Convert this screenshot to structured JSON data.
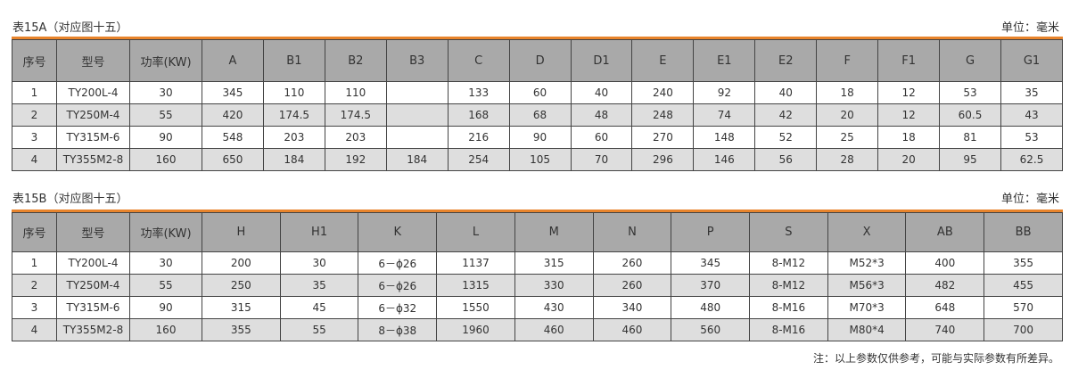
{
  "table_a": {
    "title": "表15A（对应图十五）",
    "unit": "单位：毫米",
    "headers": [
      "序号",
      "型号",
      "功率(KW)",
      "A",
      "B1",
      "B2",
      "B3",
      "C",
      "D",
      "D1",
      "E",
      "E1",
      "E2",
      "F",
      "F1",
      "G",
      "G1"
    ],
    "rows": [
      [
        "1",
        "TY200L-4",
        "30",
        "345",
        "110",
        "110",
        "",
        "133",
        "60",
        "40",
        "240",
        "92",
        "40",
        "18",
        "12",
        "53",
        "35"
      ],
      [
        "2",
        "TY250M-4",
        "55",
        "420",
        "174.5",
        "174.5",
        "",
        "168",
        "68",
        "48",
        "248",
        "74",
        "42",
        "20",
        "12",
        "60.5",
        "43"
      ],
      [
        "3",
        "TY315M-6",
        "90",
        "548",
        "203",
        "203",
        "",
        "216",
        "90",
        "60",
        "270",
        "148",
        "52",
        "25",
        "18",
        "81",
        "53"
      ],
      [
        "4",
        "TY355M2-8",
        "160",
        "650",
        "184",
        "192",
        "184",
        "254",
        "105",
        "70",
        "296",
        "146",
        "56",
        "28",
        "20",
        "95",
        "62.5"
      ]
    ]
  },
  "table_b": {
    "title": "表15B（对应图十五）",
    "unit": "单位：毫米",
    "headers": [
      "序号",
      "型号",
      "功率(KW)",
      "H",
      "H1",
      "K",
      "L",
      "M",
      "N",
      "P",
      "S",
      "X",
      "AB",
      "BB"
    ],
    "rows": [
      [
        "1",
        "TY200L-4",
        "30",
        "200",
        "30",
        "6－ϕ26",
        "1137",
        "315",
        "260",
        "345",
        "8-M12",
        "M52*3",
        "400",
        "355"
      ],
      [
        "2",
        "TY250M-4",
        "55",
        "250",
        "35",
        "6－ϕ26",
        "1315",
        "330",
        "260",
        "370",
        "8-M12",
        "M56*3",
        "482",
        "455"
      ],
      [
        "3",
        "TY315M-6",
        "90",
        "315",
        "45",
        "6－ϕ32",
        "1550",
        "430",
        "340",
        "480",
        "8-M16",
        "M70*3",
        "648",
        "570"
      ],
      [
        "4",
        "TY355M2-8",
        "160",
        "355",
        "55",
        "8－ϕ38",
        "1960",
        "460",
        "460",
        "560",
        "8-M16",
        "M80*4",
        "740",
        "700"
      ]
    ]
  },
  "note": "注：以上参数仅供参考，可能与实际参数有所差异。",
  "colors": {
    "accent": "#e8842c",
    "header_bg": "#a9a9a9",
    "alt_row": "#dedede"
  }
}
